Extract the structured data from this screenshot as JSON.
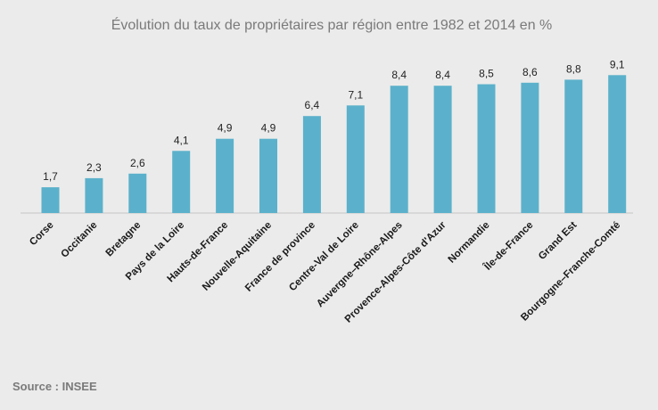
{
  "chart_data": {
    "type": "bar",
    "title": "Évolution du taux de propriétaires par région entre  1982 et 2014 en %",
    "categories": [
      "Corse",
      "Occitanie",
      "Bretagne",
      "Pays de la Loire",
      "Hauts-de-France",
      "Nouvelle-Aquitaine",
      "France de province",
      "Centre-Val de Loire",
      "Auvergne–Rhône-Alpes",
      "Provence-Alpes-Côte d'Azur",
      "Normandie",
      "Île-de-France",
      "Grand Est",
      "Bourgogne–Franche-Comté"
    ],
    "values": [
      1.7,
      2.3,
      2.6,
      4.1,
      4.9,
      4.9,
      6.4,
      7.1,
      8.4,
      8.4,
      8.5,
      8.6,
      8.8,
      9.1
    ],
    "value_labels": [
      "1,7",
      "2,3",
      "2,6",
      "4,1",
      "4,9",
      "4,9",
      "6,4",
      "7,1",
      "8,4",
      "8,4",
      "8,5",
      "8,6",
      "8,8",
      "9,1"
    ],
    "xlabel": "",
    "ylabel": "",
    "ylim": [
      0,
      10
    ],
    "grid": false,
    "legend": "none",
    "bar_color": "#5bb1cb",
    "source": "Source : INSEE"
  }
}
